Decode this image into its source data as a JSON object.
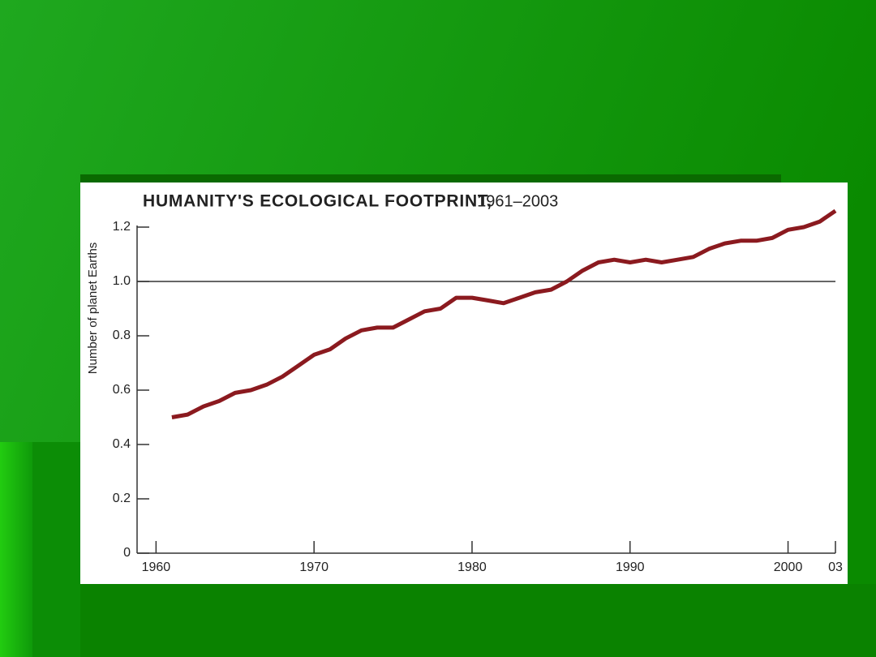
{
  "chart_data": {
    "type": "line",
    "title": "HUMANITY'S ECOLOGICAL FOOTPRINT,",
    "subtitle": "1961–2003",
    "y_label": "Number of planet Earths",
    "x": [
      1961,
      1962,
      1963,
      1964,
      1965,
      1966,
      1967,
      1968,
      1969,
      1970,
      1971,
      1972,
      1973,
      1974,
      1975,
      1976,
      1977,
      1978,
      1979,
      1980,
      1981,
      1982,
      1983,
      1984,
      1985,
      1986,
      1987,
      1988,
      1989,
      1990,
      1991,
      1992,
      1993,
      1994,
      1995,
      1996,
      1997,
      1998,
      1999,
      2000,
      2001,
      2002,
      2003
    ],
    "values": [
      0.5,
      0.51,
      0.54,
      0.56,
      0.59,
      0.6,
      0.62,
      0.65,
      0.69,
      0.73,
      0.75,
      0.79,
      0.82,
      0.83,
      0.83,
      0.86,
      0.89,
      0.9,
      0.94,
      0.94,
      0.93,
      0.92,
      0.94,
      0.96,
      0.97,
      1.0,
      1.04,
      1.07,
      1.08,
      1.07,
      1.08,
      1.07,
      1.08,
      1.09,
      1.12,
      1.14,
      1.15,
      1.15,
      1.16,
      1.19,
      1.2,
      1.22,
      1.26
    ],
    "color": "#8b1a1f",
    "xlim": [
      1958.8,
      2003
    ],
    "xticks": [
      1960,
      1970,
      1980,
      1990,
      2000,
      {
        "value": 2003,
        "label": "03"
      }
    ],
    "ylim": [
      0,
      1.2
    ],
    "yticks": [
      0,
      0.2,
      0.4,
      0.6,
      0.8,
      {
        "value": 1,
        "label": "1.0"
      },
      1.2
    ],
    "reference_line": {
      "value": 1
    }
  }
}
